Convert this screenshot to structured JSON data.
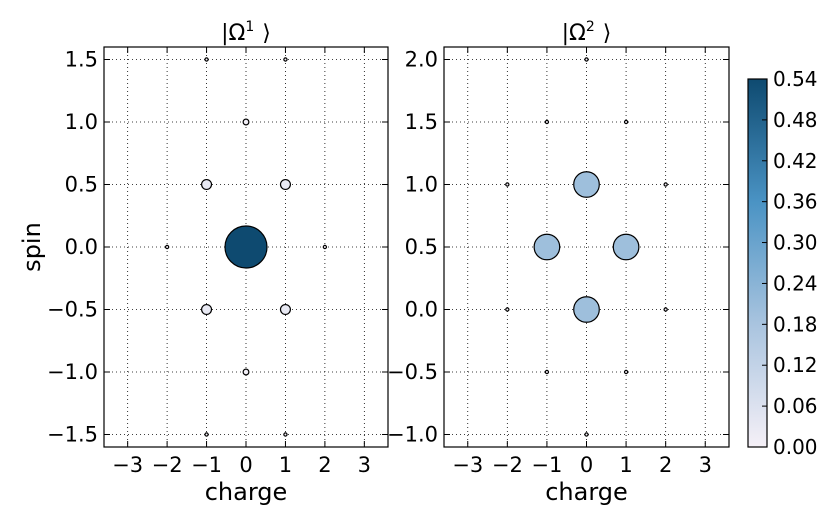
{
  "chart_data": {
    "type": "scatter",
    "colorbar": {
      "min": 0.0,
      "max": 0.54,
      "ticks": [
        "0.00",
        "0.06",
        "0.12",
        "0.18",
        "0.24",
        "0.30",
        "0.36",
        "0.42",
        "0.48",
        "0.54"
      ],
      "colors": [
        "#f5f0f7",
        "#a9c4df",
        "#4a93c4",
        "#0e4a70"
      ]
    },
    "panels": [
      {
        "title_main": "|Ω",
        "title_sup": "1",
        "title_end": "⟩",
        "xlabel": "charge",
        "ylabel": "spin",
        "xlim": [
          -3.6,
          3.6
        ],
        "ylim": [
          -1.6,
          1.6
        ],
        "xticks": [
          -3,
          -2,
          -1,
          0,
          1,
          2,
          3
        ],
        "xtick_labels": [
          "−3",
          "−2",
          "−1",
          "0",
          "1",
          "2",
          "3"
        ],
        "yticks": [
          1.5,
          1.0,
          0.5,
          0.0,
          -0.5,
          -1.0,
          -1.5
        ],
        "ytick_labels": [
          "1.5",
          "1.0",
          "0.5",
          "0.0",
          "−0.5",
          "−1.0",
          "−1.5"
        ],
        "points": [
          {
            "x": 0,
            "y": 0.0,
            "value": 0.54
          },
          {
            "x": -1,
            "y": 0.5,
            "value": 0.03
          },
          {
            "x": 1,
            "y": 0.5,
            "value": 0.03
          },
          {
            "x": -1,
            "y": -0.5,
            "value": 0.03
          },
          {
            "x": 1,
            "y": -0.5,
            "value": 0.03
          },
          {
            "x": 0,
            "y": 1.0,
            "value": 0.01
          },
          {
            "x": 0,
            "y": -1.0,
            "value": 0.01
          },
          {
            "x": -2,
            "y": 0.0,
            "value": 0.001
          },
          {
            "x": 2,
            "y": 0.0,
            "value": 0.001
          },
          {
            "x": -1,
            "y": 1.5,
            "value": 0.0001
          },
          {
            "x": 1,
            "y": 1.5,
            "value": 0.0001
          },
          {
            "x": -1,
            "y": -1.5,
            "value": 0.0001
          },
          {
            "x": 1,
            "y": -1.5,
            "value": 0.0001
          }
        ]
      },
      {
        "title_main": "|Ω",
        "title_sup": "2",
        "title_end": "⟩",
        "xlabel": "charge",
        "ylabel": "",
        "xlim": [
          -3.6,
          3.6
        ],
        "ylim": [
          -1.1,
          2.1
        ],
        "xticks": [
          -3,
          -2,
          -1,
          0,
          1,
          2,
          3
        ],
        "xtick_labels": [
          "−3",
          "−2",
          "−1",
          "0",
          "1",
          "2",
          "3"
        ],
        "yticks": [
          2.0,
          1.5,
          1.0,
          0.5,
          0.0,
          -0.5,
          -1.0
        ],
        "ytick_labels": [
          "2.0",
          "1.5",
          "1.0",
          "0.5",
          "0.0",
          "−0.5",
          "−1.0"
        ],
        "points": [
          {
            "x": 0,
            "y": 1.0,
            "value": 0.2
          },
          {
            "x": -1,
            "y": 0.5,
            "value": 0.2
          },
          {
            "x": 1,
            "y": 0.5,
            "value": 0.2
          },
          {
            "x": 0,
            "y": 0.0,
            "value": 0.2
          },
          {
            "x": -1,
            "y": 1.5,
            "value": 0.003
          },
          {
            "x": 1,
            "y": 1.5,
            "value": 0.003
          },
          {
            "x": -1,
            "y": -0.5,
            "value": 0.003
          },
          {
            "x": 1,
            "y": -0.5,
            "value": 0.003
          },
          {
            "x": 0,
            "y": 2.0,
            "value": 0.0008
          },
          {
            "x": 0,
            "y": -1.0,
            "value": 0.0008
          },
          {
            "x": -2,
            "y": 1.0,
            "value": 0.0003
          },
          {
            "x": 2,
            "y": 1.0,
            "value": 0.0003
          },
          {
            "x": -2,
            "y": 0.0,
            "value": 0.0003
          },
          {
            "x": 2,
            "y": 0.0,
            "value": 0.0003
          }
        ]
      }
    ]
  }
}
